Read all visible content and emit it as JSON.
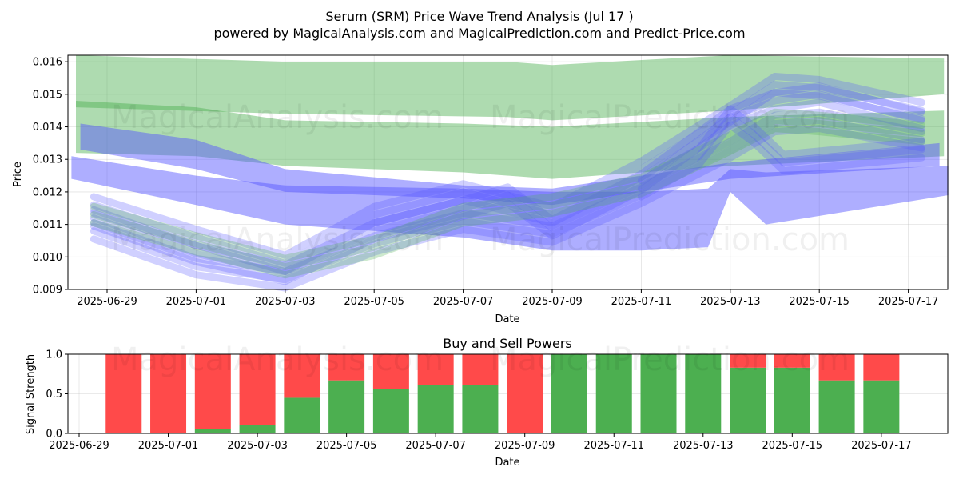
{
  "title": "Serum (SRM) Price Wave Trend Analysis (Jul 17 )",
  "subtitle": "powered by MagicalAnalysis.com and MagicalPrediction.com and Predict-Price.com",
  "watermarks": [
    "MagicalAnalysis.com",
    "MagicalPrediction.com"
  ],
  "colors": {
    "green_band": "#4caf50",
    "blue_band": "#5555ff",
    "buy": "#4caf50",
    "sell": "#ff4a4a"
  },
  "chart_data": [
    {
      "type": "area",
      "name": "price-wave-chart",
      "title": "",
      "xlabel": "Date",
      "ylabel": "Price",
      "ylim": [
        0.009,
        0.0162
      ],
      "xlim": [
        "2025-06-28.1",
        "2025-07-17.9"
      ],
      "x_ticks": [
        "2025-06-29",
        "2025-07-01",
        "2025-07-03",
        "2025-07-05",
        "2025-07-07",
        "2025-07-09",
        "2025-07-11",
        "2025-07-13",
        "2025-07-15",
        "2025-07-17"
      ],
      "y_ticks": [
        "0.009",
        "0.010",
        "0.011",
        "0.012",
        "0.013",
        "0.014",
        "0.015",
        "0.016"
      ],
      "grid": true,
      "bands": [
        {
          "name": "green-band-upper",
          "color": "green",
          "x": [
            "2025-06-28.3",
            "2025-07-03",
            "2025-07-08",
            "2025-07-09",
            "2025-07-13",
            "2025-07-17.8"
          ],
          "upper": [
            0.0162,
            0.016,
            0.016,
            0.0159,
            0.0162,
            0.0161
          ],
          "lower": [
            0.0146,
            0.0144,
            0.0143,
            0.0142,
            0.0145,
            0.015
          ]
        },
        {
          "name": "green-band-middle",
          "color": "green",
          "x": [
            "2025-06-28.3",
            "2025-07-01",
            "2025-07-03",
            "2025-07-07",
            "2025-07-09",
            "2025-07-13",
            "2025-07-17.8"
          ],
          "upper": [
            0.0148,
            0.0146,
            0.0142,
            0.0141,
            0.014,
            0.0143,
            0.0145
          ],
          "lower": [
            0.0132,
            0.0131,
            0.0128,
            0.0126,
            0.0124,
            0.0128,
            0.0131
          ]
        },
        {
          "name": "blue-band-upper",
          "color": "blue",
          "x": [
            "2025-06-28.4",
            "2025-07-01",
            "2025-07-03",
            "2025-07-07",
            "2025-07-09",
            "2025-07-13",
            "2025-07-17.7"
          ],
          "upper": [
            0.0141,
            0.0136,
            0.0127,
            0.0122,
            0.0121,
            0.0129,
            0.0135
          ],
          "lower": [
            0.0133,
            0.0127,
            0.012,
            0.0118,
            0.0116,
            0.0124,
            0.0128
          ]
        },
        {
          "name": "blue-band-lower",
          "color": "blue",
          "x": [
            "2025-06-28.2",
            "2025-07-01",
            "2025-07-03",
            "2025-07-07",
            "2025-07-09",
            "2025-07-11",
            "2025-07-12.5",
            "2025-07-13",
            "2025-07-13.8",
            "2025-07-17.9"
          ],
          "upper": [
            0.0131,
            0.0125,
            0.0122,
            0.0121,
            0.012,
            0.012,
            0.0121,
            0.0127,
            0.0126,
            0.0128
          ],
          "lower": [
            0.0124,
            0.0116,
            0.011,
            0.0106,
            0.0102,
            0.0102,
            0.0103,
            0.012,
            0.011,
            0.0119
          ]
        }
      ],
      "wave_lines": [
        {
          "name": "wave-main",
          "color": "blue",
          "x": [
            "2025-06-28.7",
            "2025-07-01",
            "2025-07-03",
            "2025-07-05",
            "2025-07-07",
            "2025-07-08",
            "2025-07-09",
            "2025-07-11",
            "2025-07-13",
            "2025-07-14",
            "2025-07-15",
            "2025-07-17.3"
          ],
          "y": [
            0.0112,
            0.0101,
            0.0095,
            0.0108,
            0.0115,
            0.0119,
            0.0109,
            0.0123,
            0.0143,
            0.0148,
            0.015,
            0.0142
          ]
        },
        {
          "name": "wave-high",
          "color": "blue",
          "x": [
            "2025-06-28.7",
            "2025-07-01",
            "2025-07-03",
            "2025-07-05",
            "2025-07-07",
            "2025-07-09",
            "2025-07-11",
            "2025-07-13",
            "2025-07-14",
            "2025-07-15",
            "2025-07-17.3"
          ],
          "y": [
            0.0116,
            0.0106,
            0.0098,
            0.0113,
            0.012,
            0.0113,
            0.0127,
            0.0144,
            0.0153,
            0.0152,
            0.0145
          ]
        },
        {
          "name": "wave-low",
          "color": "blue",
          "x": [
            "2025-06-28.7",
            "2025-07-01",
            "2025-07-03",
            "2025-07-05",
            "2025-07-07",
            "2025-07-09",
            "2025-07-11",
            "2025-07-13",
            "2025-07-14",
            "2025-07-15",
            "2025-07-17.3"
          ],
          "y": [
            0.0108,
            0.0097,
            0.0093,
            0.0104,
            0.0111,
            0.0107,
            0.0119,
            0.0133,
            0.0141,
            0.0142,
            0.0136
          ]
        },
        {
          "name": "wave-green",
          "color": "green",
          "x": [
            "2025-06-28.7",
            "2025-07-01",
            "2025-07-03",
            "2025-07-05",
            "2025-07-07",
            "2025-07-09",
            "2025-07-11",
            "2025-07-13",
            "2025-07-14",
            "2025-07-15",
            "2025-07-17.3"
          ],
          "y": [
            0.0113,
            0.0104,
            0.0097,
            0.0103,
            0.0113,
            0.0116,
            0.0122,
            0.0135,
            0.0142,
            0.0141,
            0.0138
          ]
        },
        {
          "name": "wave-spike",
          "color": "blue",
          "x": [
            "2025-07-11",
            "2025-07-12.3",
            "2025-07-13",
            "2025-07-13.5",
            "2025-07-14.2",
            "2025-07-17.3"
          ],
          "y": [
            0.0121,
            0.0131,
            0.0143,
            0.0138,
            0.0129,
            0.0133
          ]
        }
      ]
    },
    {
      "type": "bar",
      "name": "buy-sell-chart",
      "title": "Buy and Sell Powers",
      "xlabel": "Date",
      "ylabel": "Signal Strength",
      "ylim": [
        0,
        1
      ],
      "x_ticks": [
        "2025-06-29",
        "2025-07-01",
        "2025-07-03",
        "2025-07-05",
        "2025-07-07",
        "2025-07-09",
        "2025-07-11",
        "2025-07-13",
        "2025-07-15",
        "2025-07-17"
      ],
      "y_ticks": [
        "0.0",
        "0.5",
        "1.0"
      ],
      "grid": true,
      "categories": [
        "2025-06-30",
        "2025-07-01",
        "2025-07-02",
        "2025-07-03",
        "2025-07-04",
        "2025-07-05",
        "2025-07-06",
        "2025-07-07",
        "2025-07-08",
        "2025-07-09",
        "2025-07-10",
        "2025-07-11",
        "2025-07-12",
        "2025-07-13",
        "2025-07-14",
        "2025-07-15",
        "2025-07-16",
        "2025-07-17"
      ],
      "series": [
        {
          "name": "Buy",
          "values": [
            0,
            0,
            0.06,
            0.11,
            0.45,
            0.67,
            0.56,
            0.61,
            0.61,
            0,
            1,
            1,
            1,
            1,
            0.83,
            0.83,
            0.67,
            0.67
          ]
        },
        {
          "name": "Sell",
          "values": [
            1,
            1,
            0.94,
            0.89,
            0.55,
            0.33,
            0.44,
            0.39,
            0.39,
            1,
            0,
            0,
            0,
            0,
            0.17,
            0.17,
            0.33,
            0.33
          ]
        }
      ]
    }
  ]
}
